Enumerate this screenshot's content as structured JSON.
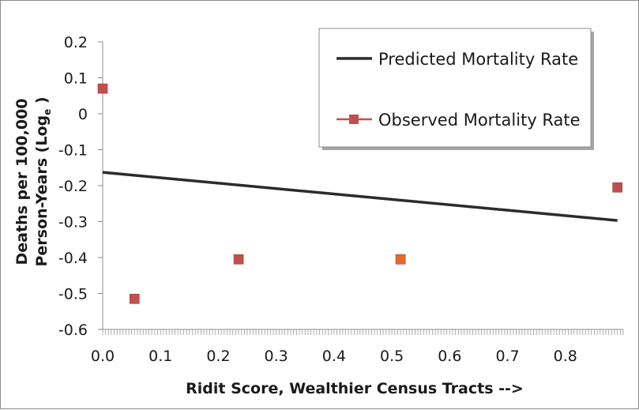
{
  "chart_data": {
    "type": "scatter",
    "title": "",
    "xlabel": "Ridit Score, Wealthier Census Tracts -->",
    "ylabel_line1": "Deaths per 100,000",
    "ylabel_line2": "Person-Years (Log",
    "ylabel_sub": "e",
    "ylabel_close": " )",
    "xlim": [
      0.0,
      0.9
    ],
    "ylim": [
      -0.6,
      0.2
    ],
    "x_ticks": [
      "0.0",
      "0.1",
      "0.2",
      "0.3",
      "0.4",
      "0.5",
      "0.6",
      "0.7",
      "0.8"
    ],
    "y_ticks": [
      "0.2",
      "0.1",
      "0",
      "-0.1",
      "-0.2",
      "-0.3",
      "-0.4",
      "-0.5",
      "-0.6"
    ],
    "grid": false,
    "legend_position": "top-right",
    "series": [
      {
        "name": "Predicted Mortality Rate",
        "kind": "line",
        "color": "#2b2b2b",
        "x": [
          0.0,
          0.89
        ],
        "y": [
          -0.163,
          -0.297
        ]
      },
      {
        "name": "Observed Mortality Rate",
        "kind": "markers",
        "color": "#c0504d",
        "x": [
          0.0,
          0.055,
          0.235,
          0.515,
          0.89
        ],
        "y": [
          0.07,
          -0.515,
          -0.405,
          -0.405,
          -0.205
        ]
      }
    ]
  }
}
